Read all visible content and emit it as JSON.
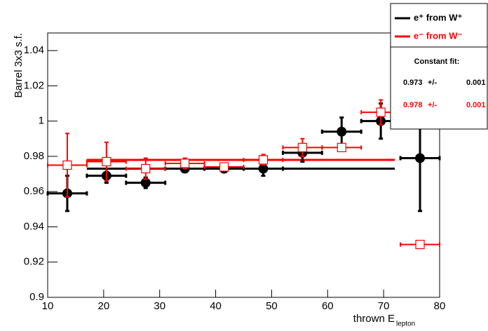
{
  "chart_data": {
    "type": "errorbar",
    "ylabel": "Barrel 3x3 s.f.",
    "xlabel": "thrown E",
    "xlabel_sub": "lepton",
    "xlim": [
      10,
      80
    ],
    "ylim": [
      0.9,
      1.05
    ],
    "xticks": [
      10,
      20,
      30,
      40,
      50,
      60,
      70,
      80
    ],
    "yticks": [
      0.9,
      0.92,
      0.94,
      0.96,
      0.98,
      1,
      1.02,
      1.04
    ],
    "series": [
      {
        "name": "e⁺ from W⁺",
        "color": "#000000",
        "marker": "circle",
        "x": [
          13.5,
          20.5,
          27.5,
          34.5,
          41.5,
          48.5,
          55.5,
          62.5,
          69.5,
          76.5
        ],
        "xerr": [
          3.5,
          3.5,
          3.5,
          3.5,
          3.5,
          3.5,
          3.5,
          3.5,
          3.5,
          3.5
        ],
        "values": [
          0.959,
          0.969,
          0.965,
          0.973,
          0.973,
          0.973,
          0.982,
          0.994,
          1.0,
          0.979
        ],
        "yerr": [
          0.01,
          0.004,
          0.003,
          0.002,
          0.002,
          0.004,
          0.005,
          0.008,
          0.01,
          0.03
        ]
      },
      {
        "name": "e⁻ from W⁻",
        "color": "#ff0000",
        "marker": "open-square",
        "x": [
          13.5,
          20.5,
          27.5,
          34.5,
          41.5,
          48.5,
          55.5,
          62.5,
          69.5,
          76.5
        ],
        "xerr": [
          3.5,
          3.5,
          3.5,
          3.5,
          3.5,
          3.5,
          3.5,
          3.5,
          3.5,
          3.5
        ],
        "values": [
          0.975,
          0.977,
          0.973,
          0.976,
          0.974,
          0.978,
          0.985,
          0.985,
          1.005,
          0.93
        ],
        "yerr": [
          0.018,
          0.011,
          0.006,
          0.003,
          0.002,
          0.003,
          0.005,
          0.002,
          0.007,
          0
        ]
      }
    ],
    "fit": {
      "title": "Constant fit:",
      "separator": "+/-",
      "values": [
        0.973,
        0.978
      ],
      "errors": [
        0.001,
        0.001
      ],
      "xrange": [
        17,
        72
      ]
    }
  }
}
